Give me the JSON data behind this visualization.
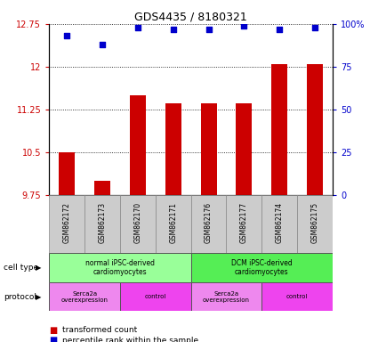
{
  "title": "GDS4435 / 8180321",
  "samples": [
    "GSM862172",
    "GSM862173",
    "GSM862170",
    "GSM862171",
    "GSM862176",
    "GSM862177",
    "GSM862174",
    "GSM862175"
  ],
  "bar_values": [
    10.5,
    10.0,
    11.5,
    11.35,
    11.35,
    11.35,
    12.05,
    12.05
  ],
  "dot_values": [
    93,
    88,
    98,
    97,
    97,
    99,
    97,
    98
  ],
  "ylim": [
    9.75,
    12.75
  ],
  "yticks": [
    9.75,
    10.5,
    11.25,
    12.0,
    12.75
  ],
  "ytick_labels": [
    "9.75",
    "10.5",
    "11.25",
    "12",
    "12.75"
  ],
  "y2lim": [
    0,
    100
  ],
  "y2ticks": [
    0,
    25,
    50,
    75,
    100
  ],
  "y2tick_labels": [
    "0",
    "25",
    "50",
    "75",
    "100%"
  ],
  "bar_color": "#cc0000",
  "dot_color": "#0000cc",
  "left_label_color": "#cc0000",
  "right_label_color": "#0000cc",
  "cell_type_groups": [
    {
      "label": "normal iPSC-derived\ncardiomyocytes",
      "start": 0,
      "end": 4,
      "color": "#99ff99"
    },
    {
      "label": "DCM iPSC-derived\ncardiomyocytes",
      "start": 4,
      "end": 8,
      "color": "#55ee55"
    }
  ],
  "protocol_groups": [
    {
      "label": "Serca2a\noverexpression",
      "start": 0,
      "end": 2,
      "color": "#ee88ee"
    },
    {
      "label": "control",
      "start": 2,
      "end": 4,
      "color": "#ee44ee"
    },
    {
      "label": "Serca2a\noverexpression",
      "start": 4,
      "end": 6,
      "color": "#ee88ee"
    },
    {
      "label": "control",
      "start": 6,
      "end": 8,
      "color": "#ee44ee"
    }
  ],
  "cell_type_label": "cell type",
  "protocol_label": "protocol",
  "legend_red_label": "transformed count",
  "legend_blue_label": "percentile rank within the sample",
  "bar_width": 0.45,
  "plot_bg": "#ffffff",
  "sample_bg": "#cccccc"
}
